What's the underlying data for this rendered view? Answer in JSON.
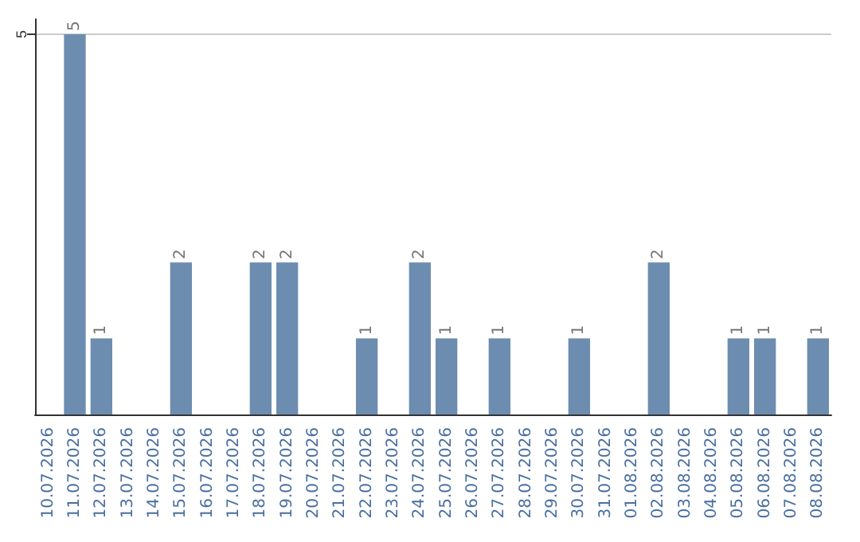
{
  "chart_data": {
    "type": "bar",
    "categories": [
      "10.07.2026",
      "11.07.2026",
      "12.07.2026",
      "13.07.2026",
      "14.07.2026",
      "15.07.2026",
      "16.07.2026",
      "17.07.2026",
      "18.07.2026",
      "19.07.2026",
      "20.07.2026",
      "21.07.2026",
      "22.07.2026",
      "23.07.2026",
      "24.07.2026",
      "25.07.2026",
      "26.07.2026",
      "27.07.2026",
      "28.07.2026",
      "29.07.2026",
      "30.07.2026",
      "31.07.2026",
      "01.08.2026",
      "02.08.2026",
      "03.08.2026",
      "04.08.2026",
      "05.08.2026",
      "06.08.2026",
      "07.08.2026",
      "08.08.2026"
    ],
    "values": [
      0,
      5,
      1,
      0,
      0,
      2,
      0,
      0,
      2,
      2,
      0,
      0,
      1,
      0,
      2,
      1,
      0,
      1,
      0,
      0,
      1,
      0,
      0,
      2,
      0,
      0,
      1,
      1,
      0,
      1
    ],
    "value_labels": [
      null,
      "5",
      "1",
      null,
      null,
      "2",
      null,
      null,
      "2",
      "2",
      null,
      null,
      "1",
      null,
      "2",
      "1",
      null,
      "1",
      null,
      null,
      "1",
      null,
      null,
      "2",
      null,
      null,
      "1",
      "1",
      null,
      "1"
    ],
    "color": "#6d8db0",
    "ylim": [
      0,
      5.2
    ],
    "yticks": [
      5
    ],
    "grid": "y"
  }
}
